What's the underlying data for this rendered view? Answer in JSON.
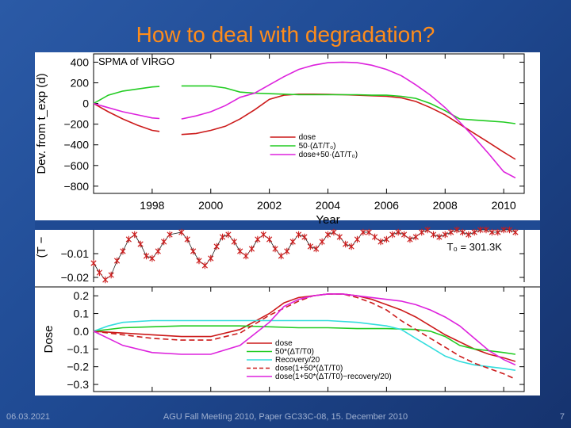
{
  "slide": {
    "title": "How to deal with degradation?",
    "footer_left": "06.03.2021",
    "footer_center": "AGU Fall Meeting 2010, Paper GC33C-08, 15. December 2010",
    "footer_right": "7"
  },
  "colors": {
    "dose": "#cc1a1a",
    "temp": "#22cc22",
    "combo": "#dd22dd",
    "recovery": "#33dddd",
    "black": "#000000"
  },
  "chart_data": [
    {
      "type": "line",
      "title": "SPMA of VIRGO",
      "xlabel": "Year",
      "ylabel": "Dev. from t_exp (d)",
      "xlim": [
        1996,
        2010.7
      ],
      "ylim": [
        -870,
        480
      ],
      "xticks": [
        1998,
        2000,
        2002,
        2004,
        2006,
        2008,
        2010
      ],
      "yticks": [
        400,
        200,
        0,
        -200,
        -400,
        -600,
        -800
      ],
      "ytick_labels": [
        "400",
        "200",
        "0",
        "−200",
        "−400",
        "−600",
        "−800"
      ],
      "legend": [
        "dose",
        "50·(ΔT/T₀)",
        "dose+50·(ΔT/T₀)"
      ],
      "series": [
        {
          "name": "dose",
          "color": "#cc1a1a",
          "x": [
            1996.0,
            1996.5,
            1997.0,
            1997.5,
            1998.0,
            1998.25,
            1998.6,
            1999.0,
            1999.5,
            2000.0,
            2000.5,
            2001.0,
            2001.5,
            2002.0,
            2002.5,
            2003.0,
            2003.5,
            2004.0,
            2004.5,
            2005.0,
            2005.5,
            2006.0,
            2006.5,
            2007.0,
            2007.5,
            2008.0,
            2008.5,
            2009.0,
            2009.5,
            2010.0,
            2010.4
          ],
          "y": [
            0,
            -80,
            -150,
            -210,
            -260,
            -270,
            null,
            -300,
            -290,
            -260,
            -220,
            -150,
            -60,
            40,
            80,
            90,
            90,
            88,
            85,
            80,
            75,
            70,
            55,
            20,
            -40,
            -110,
            -200,
            -290,
            -380,
            -470,
            -540
          ]
        },
        {
          "name": "50·(ΔT/T₀)",
          "color": "#22cc22",
          "x": [
            1996.0,
            1996.5,
            1997.0,
            1997.5,
            1998.0,
            1998.25,
            1998.6,
            1999.0,
            1999.5,
            2000.0,
            2000.5,
            2001.0,
            2001.5,
            2002.0,
            2002.5,
            2003.0,
            2003.5,
            2004.0,
            2004.5,
            2005.0,
            2005.5,
            2006.0,
            2006.5,
            2007.0,
            2007.5,
            2008.0,
            2008.5,
            2009.0,
            2009.5,
            2010.0,
            2010.4
          ],
          "y": [
            0,
            80,
            120,
            140,
            160,
            165,
            null,
            170,
            170,
            170,
            150,
            110,
            100,
            95,
            90,
            85,
            85,
            85,
            85,
            85,
            80,
            80,
            70,
            50,
            0,
            -70,
            -150,
            -160,
            -170,
            -180,
            -195
          ]
        },
        {
          "name": "dose+50·(ΔT/T₀)",
          "color": "#dd22dd",
          "x": [
            1996.0,
            1996.5,
            1997.0,
            1997.5,
            1998.0,
            1998.25,
            1998.6,
            1999.0,
            1999.5,
            2000.0,
            2000.5,
            2001.0,
            2001.5,
            2002.0,
            2002.5,
            2003.0,
            2003.5,
            2004.0,
            2004.5,
            2005.0,
            2005.5,
            2006.0,
            2006.5,
            2007.0,
            2007.5,
            2008.0,
            2008.5,
            2009.0,
            2009.5,
            2010.0,
            2010.4
          ],
          "y": [
            0,
            -40,
            -80,
            -110,
            -140,
            -145,
            null,
            -150,
            -120,
            -80,
            -20,
            60,
            100,
            180,
            260,
            330,
            370,
            395,
            400,
            395,
            370,
            330,
            270,
            180,
            80,
            -40,
            -180,
            -330,
            -490,
            -660,
            -720
          ]
        }
      ]
    },
    {
      "type": "scatter",
      "ylabel": "(T −",
      "ylim": [
        -0.022,
        0.0
      ],
      "yticks": [
        -0.01,
        -0.02
      ],
      "ytick_labels": [
        "−0.01",
        "−0.02"
      ],
      "annotation": "T₀ = 301.3K",
      "x": [
        1996.0,
        1996.2,
        1996.4,
        1996.6,
        1996.8,
        1997.0,
        1997.2,
        1997.4,
        1997.6,
        1997.8,
        1998.0,
        1998.2,
        1998.4,
        1998.6,
        1999.0,
        1999.2,
        1999.4,
        1999.6,
        1999.8,
        2000.0,
        2000.2,
        2000.4,
        2000.6,
        2000.8,
        2001.0,
        2001.2,
        2001.4,
        2001.6,
        2001.8,
        2002.0,
        2002.2,
        2002.4,
        2002.6,
        2002.8,
        2003.0,
        2003.2,
        2003.4,
        2003.6,
        2003.8,
        2004.0,
        2004.2,
        2004.4,
        2004.6,
        2004.8,
        2005.0,
        2005.2,
        2005.4,
        2005.6,
        2005.8,
        2006.0,
        2006.2,
        2006.4,
        2006.6,
        2006.8,
        2007.0,
        2007.2,
        2007.4,
        2007.6,
        2007.8,
        2008.0,
        2008.2,
        2008.4,
        2008.6,
        2008.8,
        2009.0,
        2009.2,
        2009.4,
        2009.6,
        2009.8,
        2010.0,
        2010.2,
        2010.4
      ],
      "y": [
        -0.014,
        -0.018,
        -0.021,
        -0.019,
        -0.013,
        -0.009,
        -0.004,
        -0.002,
        -0.006,
        -0.011,
        -0.012,
        -0.009,
        -0.005,
        -0.002,
        -0.001,
        -0.004,
        -0.009,
        -0.013,
        -0.015,
        -0.012,
        -0.007,
        -0.003,
        -0.002,
        -0.005,
        -0.009,
        -0.011,
        -0.008,
        -0.004,
        -0.002,
        -0.004,
        -0.008,
        -0.011,
        -0.009,
        -0.005,
        -0.002,
        -0.003,
        -0.007,
        -0.008,
        -0.005,
        -0.002,
        -0.001,
        -0.003,
        -0.006,
        -0.007,
        -0.004,
        -0.001,
        -0.001,
        -0.003,
        -0.005,
        -0.004,
        -0.002,
        -0.001,
        -0.002,
        -0.004,
        -0.003,
        -0.001,
        0.0,
        -0.002,
        -0.003,
        -0.002,
        -0.001,
        0.0,
        -0.001,
        -0.002,
        -0.001,
        0.0,
        0.0,
        -0.001,
        -0.001,
        0.0,
        0.0,
        -0.001
      ]
    },
    {
      "type": "line",
      "ylabel": "Dose",
      "xlabel": "",
      "xlim": [
        1996,
        2010.7
      ],
      "ylim": [
        -0.34,
        0.25
      ],
      "xticks": [
        1998,
        2000,
        2002,
        2004,
        2006,
        2008,
        2010
      ],
      "yticks": [
        0.2,
        0.1,
        0.0,
        -0.1,
        -0.2,
        -0.3
      ],
      "ytick_labels": [
        "0.2",
        "0.1",
        "0.0",
        "−0.1",
        "−0.2",
        "−0.3"
      ],
      "legend": [
        "dose",
        "50*(ΔT/T0)",
        "Recovery/20",
        "dose(1+50*(ΔT/T0)",
        "dose(1+50*(ΔT/T0)−recovery/20)"
      ],
      "series": [
        {
          "name": "dose",
          "color": "#cc1a1a",
          "dash": false,
          "x": [
            1996.0,
            1997.0,
            1998.0,
            1999.0,
            2000.0,
            2001.0,
            2002.0,
            2002.5,
            2003.0,
            2003.5,
            2004.0,
            2004.5,
            2005.0,
            2005.5,
            2006.0,
            2006.5,
            2007.0,
            2007.5,
            2008.0,
            2008.5,
            2009.0,
            2009.5,
            2010.0,
            2010.4
          ],
          "y": [
            0.0,
            -0.01,
            -0.02,
            -0.03,
            -0.03,
            0.01,
            0.1,
            0.16,
            0.19,
            0.2,
            0.21,
            0.21,
            0.2,
            0.18,
            0.15,
            0.12,
            0.08,
            0.03,
            -0.02,
            -0.06,
            -0.1,
            -0.13,
            -0.15,
            -0.17
          ]
        },
        {
          "name": "50*(ΔT/T0)",
          "color": "#22cc22",
          "dash": false,
          "x": [
            1996.0,
            1997.0,
            1998.0,
            1999.0,
            2000.0,
            2001.0,
            2002.0,
            2003.0,
            2004.0,
            2005.0,
            2006.0,
            2007.0,
            2007.5,
            2008.0,
            2008.5,
            2009.0,
            2009.5,
            2010.0,
            2010.4
          ],
          "y": [
            0.0,
            0.02,
            0.025,
            0.03,
            0.03,
            0.03,
            0.025,
            0.02,
            0.02,
            0.015,
            0.015,
            0.01,
            0.0,
            -0.03,
            -0.08,
            -0.1,
            -0.11,
            -0.12,
            -0.13
          ]
        },
        {
          "name": "Recovery/20",
          "color": "#33dddd",
          "dash": false,
          "x": [
            1996.0,
            1996.5,
            1997.0,
            1998.0,
            1999.0,
            2000.0,
            2001.0,
            2002.0,
            2003.0,
            2004.0,
            2005.0,
            2006.0,
            2006.5,
            2007.0,
            2007.5,
            2008.0,
            2008.5,
            2009.0,
            2009.5,
            2010.0,
            2010.4
          ],
          "y": [
            0.0,
            0.03,
            0.05,
            0.06,
            0.06,
            0.06,
            0.06,
            0.06,
            0.06,
            0.06,
            0.05,
            0.03,
            0.01,
            -0.04,
            -0.09,
            -0.14,
            -0.17,
            -0.19,
            -0.2,
            -0.21,
            -0.22
          ]
        },
        {
          "name": "dose(1+50*(ΔT/T0)",
          "color": "#cc1a1a",
          "dash": true,
          "x": [
            1996.0,
            1997.0,
            1998.0,
            1999.0,
            2000.0,
            2001.0,
            2002.0,
            2003.0,
            2003.5,
            2004.0,
            2004.5,
            2005.0,
            2005.5,
            2006.0,
            2006.5,
            2007.0,
            2007.5,
            2008.0,
            2008.5,
            2009.0,
            2009.5,
            2010.0,
            2010.4
          ],
          "y": [
            0.0,
            -0.02,
            -0.04,
            -0.05,
            -0.05,
            -0.01,
            0.09,
            0.17,
            0.2,
            0.21,
            0.21,
            0.19,
            0.16,
            0.12,
            0.06,
            0.01,
            -0.04,
            -0.09,
            -0.14,
            -0.18,
            -0.21,
            -0.24,
            -0.27
          ]
        },
        {
          "name": "dose(1+50*(ΔT/T0)−recovery/20)",
          "color": "#dd22dd",
          "dash": false,
          "x": [
            1996.0,
            1997.0,
            1998.0,
            1999.0,
            2000.0,
            2001.0,
            2002.0,
            2002.5,
            2003.0,
            2003.5,
            2004.0,
            2004.5,
            2005.0,
            2005.5,
            2006.0,
            2006.5,
            2007.0,
            2007.5,
            2008.0,
            2008.5,
            2009.0,
            2009.5,
            2010.0,
            2010.4
          ],
          "y": [
            0.0,
            -0.08,
            -0.12,
            -0.13,
            -0.13,
            -0.08,
            0.05,
            0.14,
            0.18,
            0.2,
            0.21,
            0.21,
            0.2,
            0.19,
            0.18,
            0.17,
            0.15,
            0.12,
            0.08,
            0.03,
            -0.04,
            -0.11,
            -0.16,
            -0.19
          ]
        }
      ]
    }
  ]
}
